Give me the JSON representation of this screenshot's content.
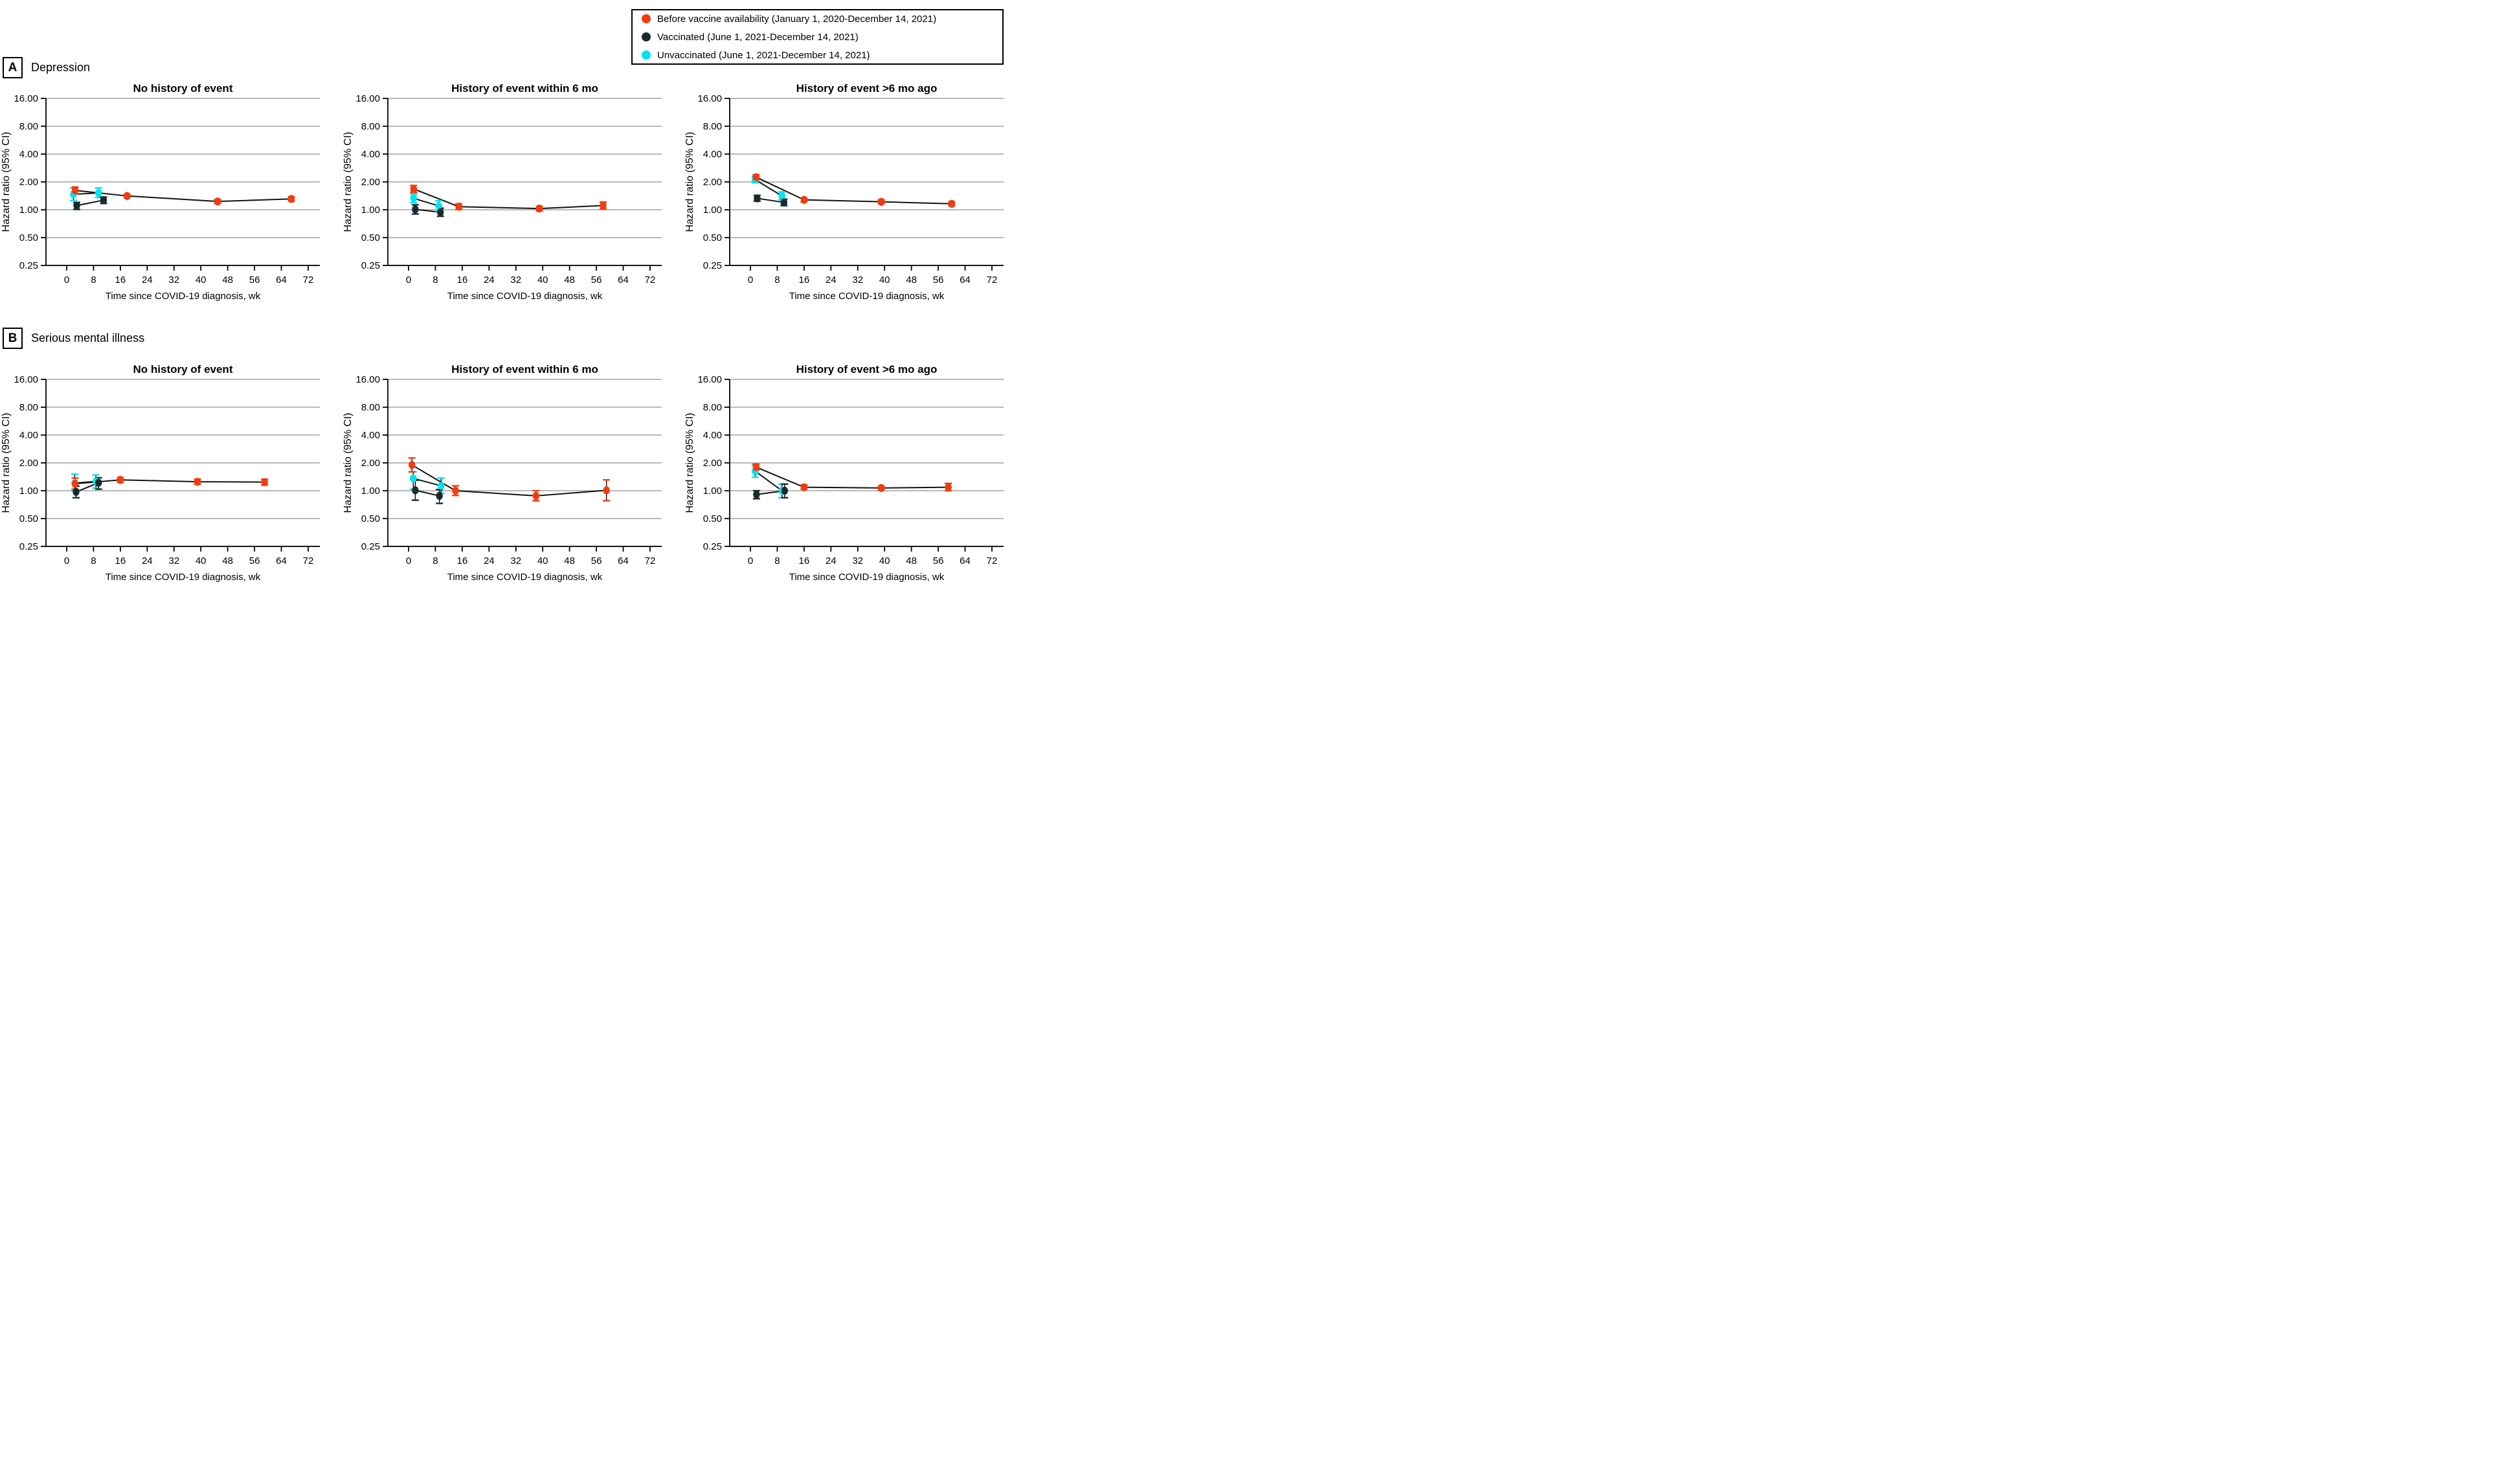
{
  "figure": {
    "background": "#ffffff",
    "grid_color": "#b9b9b9",
    "axis_color": "#000000",
    "line_color": "#121212"
  },
  "legend": {
    "items": [
      {
        "key": "before",
        "label": "Before vaccine availability (January 1, 2020-December 14, 2021)",
        "color": "#f23b0e"
      },
      {
        "key": "vaccinated",
        "label": "Vaccinated (June 1, 2021-December 14, 2021)",
        "color": "#172a2e"
      },
      {
        "key": "unvaccinated",
        "label": "Unvaccinated (June 1, 2021-December 14, 2021)",
        "color": "#00e3f0"
      }
    ]
  },
  "panels": [
    {
      "label": "A",
      "condition": "Depression"
    },
    {
      "label": "B",
      "condition": "Serious mental illness"
    }
  ],
  "chart_data": {
    "type": "line",
    "y_scale": "log2",
    "ylim": [
      0.25,
      16
    ],
    "y_label": "Hazard ratio (95% CI)",
    "y_ticks": [
      "16.00",
      "8.00",
      "4.00",
      "2.00",
      "1.00",
      "0.50",
      "0.25"
    ],
    "y_tick_values": [
      16,
      8,
      4,
      2,
      1,
      0.5,
      0.25
    ],
    "x_label": "Time since COVID-19 diagnosis, wk",
    "x_ticks": [
      0,
      8,
      16,
      24,
      32,
      40,
      48,
      56,
      64,
      72
    ],
    "xlim": [
      0,
      76
    ],
    "grid": "horizontal-only",
    "legend_position": "top-right",
    "series_colors": {
      "before": "#f23b0e",
      "vaccinated": "#172a2e",
      "unvaccinated": "#00e3f0"
    },
    "subplots": [
      {
        "panel": "A",
        "condition": "Depression",
        "title": "No history of event",
        "series": [
          {
            "key": "before",
            "name": "Before vaccine availability",
            "points": [
              {
                "x_wk": 2.5,
                "hr": 1.62,
                "ci_low": 1.49,
                "ci_high": 1.76
              },
              {
                "x_wk": 18,
                "hr": 1.41,
                "ci_low": 1.35,
                "ci_high": 1.47
              },
              {
                "x_wk": 45,
                "hr": 1.23,
                "ci_low": 1.17,
                "ci_high": 1.29
              },
              {
                "x_wk": 67,
                "hr": 1.31,
                "ci_low": 1.24,
                "ci_high": 1.38
              }
            ]
          },
          {
            "key": "vaccinated",
            "name": "Vaccinated",
            "points": [
              {
                "x_wk": 3,
                "hr": 1.11,
                "ci_low": 1.01,
                "ci_high": 1.2
              },
              {
                "x_wk": 11,
                "hr": 1.27,
                "ci_low": 1.17,
                "ci_high": 1.37
              }
            ]
          },
          {
            "key": "unvaccinated",
            "name": "Unvaccinated",
            "points": [
              {
                "x_wk": 2,
                "hr": 1.47,
                "ci_low": 1.26,
                "ci_high": 1.72
              },
              {
                "x_wk": 9.5,
                "hr": 1.52,
                "ci_low": 1.36,
                "ci_high": 1.72
              }
            ]
          }
        ]
      },
      {
        "panel": "A",
        "condition": "Depression",
        "title": "History of event within 6 mo",
        "series": [
          {
            "key": "before",
            "name": "Before vaccine availability",
            "points": [
              {
                "x_wk": 1.5,
                "hr": 1.68,
                "ci_low": 1.54,
                "ci_high": 1.83
              },
              {
                "x_wk": 15,
                "hr": 1.08,
                "ci_low": 1.01,
                "ci_high": 1.16
              },
              {
                "x_wk": 39,
                "hr": 1.03,
                "ci_low": 0.97,
                "ci_high": 1.09
              },
              {
                "x_wk": 58,
                "hr": 1.11,
                "ci_low": 1.02,
                "ci_high": 1.21
              }
            ]
          },
          {
            "key": "vaccinated",
            "name": "Vaccinated",
            "points": [
              {
                "x_wk": 2,
                "hr": 1.01,
                "ci_low": 0.9,
                "ci_high": 1.13
              },
              {
                "x_wk": 9.5,
                "hr": 0.94,
                "ci_low": 0.85,
                "ci_high": 1.04
              }
            ]
          },
          {
            "key": "unvaccinated",
            "name": "Unvaccinated",
            "points": [
              {
                "x_wk": 1.5,
                "hr": 1.33,
                "ci_low": 1.19,
                "ci_high": 1.48
              },
              {
                "x_wk": 9,
                "hr": 1.1,
                "ci_low": 0.97,
                "ci_high": 1.25
              }
            ]
          }
        ]
      },
      {
        "panel": "A",
        "condition": "Depression",
        "title": "History of event >6 mo ago",
        "series": [
          {
            "key": "before",
            "name": "Before vaccine availability",
            "points": [
              {
                "x_wk": 1.7,
                "hr": 2.25,
                "ci_low": 2.12,
                "ci_high": 2.39
              },
              {
                "x_wk": 16,
                "hr": 1.28,
                "ci_low": 1.22,
                "ci_high": 1.34
              },
              {
                "x_wk": 39,
                "hr": 1.22,
                "ci_low": 1.16,
                "ci_high": 1.28
              },
              {
                "x_wk": 60,
                "hr": 1.16,
                "ci_low": 1.1,
                "ci_high": 1.22
              }
            ]
          },
          {
            "key": "vaccinated",
            "name": "Vaccinated",
            "points": [
              {
                "x_wk": 2,
                "hr": 1.33,
                "ci_low": 1.24,
                "ci_high": 1.43
              },
              {
                "x_wk": 10,
                "hr": 1.2,
                "ci_low": 1.11,
                "ci_high": 1.3
              }
            ]
          },
          {
            "key": "unvaccinated",
            "name": "Unvaccinated",
            "points": [
              {
                "x_wk": 1.4,
                "hr": 2.12,
                "ci_low": 1.96,
                "ci_high": 2.29
              },
              {
                "x_wk": 9.4,
                "hr": 1.41,
                "ci_low": 1.28,
                "ci_high": 1.56
              }
            ]
          }
        ]
      },
      {
        "panel": "B",
        "condition": "Serious mental illness",
        "title": "No history of event",
        "series": [
          {
            "key": "before",
            "name": "Before vaccine availability",
            "points": [
              {
                "x_wk": 2.5,
                "hr": 1.19,
                "ci_low": 1.04,
                "ci_high": 1.37
              },
              {
                "x_wk": 16,
                "hr": 1.31,
                "ci_low": 1.23,
                "ci_high": 1.39
              },
              {
                "x_wk": 39,
                "hr": 1.25,
                "ci_low": 1.18,
                "ci_high": 1.33
              },
              {
                "x_wk": 59,
                "hr": 1.24,
                "ci_low": 1.15,
                "ci_high": 1.33
              }
            ]
          },
          {
            "key": "vaccinated",
            "name": "Vaccinated",
            "points": [
              {
                "x_wk": 2.8,
                "hr": 0.97,
                "ci_low": 0.84,
                "ci_high": 1.12
              },
              {
                "x_wk": 9.5,
                "hr": 1.22,
                "ci_low": 1.04,
                "ci_high": 1.38
              }
            ]
          },
          {
            "key": "unvaccinated",
            "name": "Unvaccinated",
            "points": [
              {
                "x_wk": 2.4,
                "hr": 1.21,
                "ci_low": 1.0,
                "ci_high": 1.51
              },
              {
                "x_wk": 8.7,
                "hr": 1.26,
                "ci_low": 1.07,
                "ci_high": 1.48
              }
            ]
          }
        ]
      },
      {
        "panel": "B",
        "condition": "Serious mental illness",
        "title": "History of event within 6 mo",
        "series": [
          {
            "key": "before",
            "name": "Before vaccine availability",
            "points": [
              {
                "x_wk": 1,
                "hr": 1.9,
                "ci_low": 1.6,
                "ci_high": 2.26
              },
              {
                "x_wk": 14,
                "hr": 1.0,
                "ci_low": 0.89,
                "ci_high": 1.13
              },
              {
                "x_wk": 38,
                "hr": 0.88,
                "ci_low": 0.78,
                "ci_high": 1.0
              },
              {
                "x_wk": 59,
                "hr": 1.01,
                "ci_low": 0.78,
                "ci_high": 1.31
              }
            ]
          },
          {
            "key": "vaccinated",
            "name": "Vaccinated",
            "points": [
              {
                "x_wk": 2,
                "hr": 1.01,
                "ci_low": 0.79,
                "ci_high": 1.3
              },
              {
                "x_wk": 9.2,
                "hr": 0.88,
                "ci_low": 0.73,
                "ci_high": 1.03
              }
            ]
          },
          {
            "key": "unvaccinated",
            "name": "Unvaccinated",
            "points": [
              {
                "x_wk": 1.4,
                "hr": 1.36,
                "ci_low": 1.04,
                "ci_high": 1.6
              },
              {
                "x_wk": 9.7,
                "hr": 1.13,
                "ci_low": 0.94,
                "ci_high": 1.37
              }
            ]
          }
        ]
      },
      {
        "panel": "B",
        "condition": "Serious mental illness",
        "title": "History of event >6 mo ago",
        "series": [
          {
            "key": "before",
            "name": "Before vaccine availability",
            "points": [
              {
                "x_wk": 1.7,
                "hr": 1.8,
                "ci_low": 1.67,
                "ci_high": 1.94
              },
              {
                "x_wk": 16,
                "hr": 1.09,
                "ci_low": 1.04,
                "ci_high": 1.15
              },
              {
                "x_wk": 39,
                "hr": 1.07,
                "ci_low": 1.02,
                "ci_high": 1.12
              },
              {
                "x_wk": 59,
                "hr": 1.09,
                "ci_low": 1.0,
                "ci_high": 1.2
              }
            ]
          },
          {
            "key": "vaccinated",
            "name": "Vaccinated",
            "points": [
              {
                "x_wk": 1.8,
                "hr": 0.91,
                "ci_low": 0.82,
                "ci_high": 1.0
              },
              {
                "x_wk": 10.2,
                "hr": 1.0,
                "ci_low": 0.84,
                "ci_high": 1.18
              }
            ]
          },
          {
            "key": "unvaccinated",
            "name": "Unvaccinated",
            "points": [
              {
                "x_wk": 1.4,
                "hr": 1.63,
                "ci_low": 1.4,
                "ci_high": 1.88
              },
              {
                "x_wk": 9.4,
                "hr": 1.0,
                "ci_low": 0.84,
                "ci_high": 1.18
              }
            ]
          }
        ]
      }
    ]
  }
}
